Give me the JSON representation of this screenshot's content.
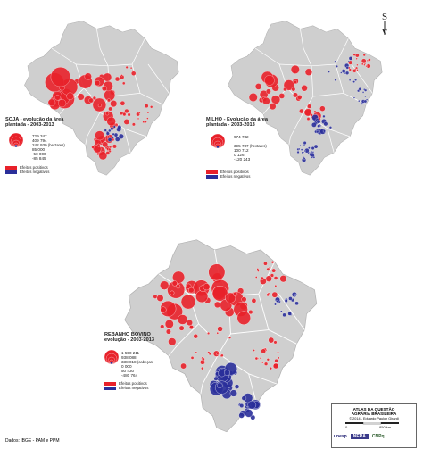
{
  "colors": {
    "land": "#cfcfcf",
    "border": "#ffffff",
    "positive": "#e8212a",
    "negative": "#2a2f9a"
  },
  "maps": [
    {
      "id": "soja",
      "title_line1": "SOJA - evolução da área",
      "title_line2": "plantada - 2003-2013",
      "legend_values": [
        "729 347",
        "409 794",
        "242 930",
        "85 000",
        "-50 000",
        "-85 845"
      ],
      "unit": "(hectares)",
      "positive_label": "Efeitos positivos",
      "negative_label": "Efeitos negativos"
    },
    {
      "id": "milho",
      "title_line1": "MILHO - Evolução da área",
      "title_line2": "plantada - 2003-2013",
      "legend_values": [
        "974 732",
        "395 737",
        "100 712",
        "0 126",
        "-120 243"
      ],
      "unit": "(hectares)",
      "positive_label": "Efeitos positivos",
      "negative_label": "Efeitos negativos"
    },
    {
      "id": "rebanho",
      "title_line1": "REBANHO BOVINO",
      "title_line2": "evolução - 2003-2013",
      "legend_values": [
        "1 550 211",
        "938 088",
        "338 018",
        "0 000",
        "50 430",
        "-480 764"
      ],
      "unit": "(cabeças)",
      "positive_label": "Efeitos positivos",
      "negative_label": "Efeitos negativos"
    }
  ],
  "north_label": "S",
  "atlas": {
    "title_line1": "ATLAS DA QUESTÃO",
    "title_line2": "AGRÁRIA BRASILEIRA",
    "copyright": "© 2014 - Eduardo Paulon Girardi",
    "scale_zero": "0",
    "scale_end": "850 km"
  },
  "logos": {
    "unesp": "unesp",
    "nera": "NERA",
    "cnpq": "CNPq"
  },
  "source": "Dados: IBGE - PAM e PPM"
}
